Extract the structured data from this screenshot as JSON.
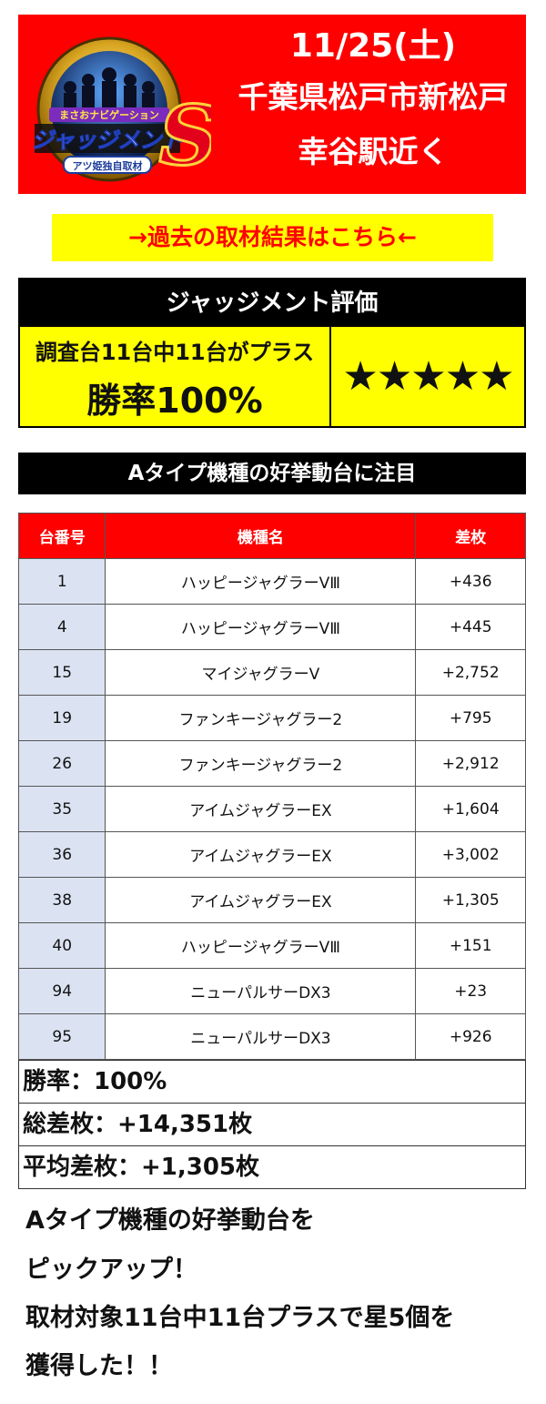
{
  "header": {
    "date": "11/25(土)",
    "location_line1": "千葉県松戸市新松戸",
    "location_line2": "幸谷駅近く",
    "logo": {
      "top_text": "まさおナビゲーション",
      "main_text": "ジャッジメント",
      "badge_text": "アツ姫独自取材",
      "letter": "S"
    }
  },
  "past_results_link": "→過去の取材結果はこちら←",
  "evaluation": {
    "title": "ジャッジメント評価",
    "condition": "調査台11台中11台がプラス",
    "win_rate": "勝率100%",
    "stars": "★★★★★",
    "star_count": 5
  },
  "section_title": "Aタイプ機種の好挙動台に注目",
  "table": {
    "headers": [
      "台番号",
      "機種名",
      "差枚"
    ],
    "rows": [
      {
        "num": "1",
        "name": "ハッピージャグラーVⅢ",
        "diff": "+436"
      },
      {
        "num": "4",
        "name": "ハッピージャグラーVⅢ",
        "diff": "+445"
      },
      {
        "num": "15",
        "name": "マイジャグラーV",
        "diff": "+2,752"
      },
      {
        "num": "19",
        "name": "ファンキージャグラー2",
        "diff": "+795"
      },
      {
        "num": "26",
        "name": "ファンキージャグラー2",
        "diff": "+2,912"
      },
      {
        "num": "35",
        "name": "アイムジャグラーEX",
        "diff": "+1,604"
      },
      {
        "num": "36",
        "name": "アイムジャグラーEX",
        "diff": "+3,002"
      },
      {
        "num": "38",
        "name": "アイムジャグラーEX",
        "diff": "+1,305"
      },
      {
        "num": "40",
        "name": "ハッピージャグラーVⅢ",
        "diff": "+151"
      },
      {
        "num": "94",
        "name": "ニューパルサーDX3",
        "diff": "+23"
      },
      {
        "num": "95",
        "name": "ニューパルサーDX3",
        "diff": "+926"
      }
    ]
  },
  "summary": {
    "win_rate": "勝率：100%",
    "total": "総差枚：+14,351枚",
    "average": "平均差枚：+1,305枚"
  },
  "footer": {
    "line1": "Aタイプ機種の好挙動台を",
    "line2": "ピックアップ！",
    "line3": "取材対象11台中11台プラスで星5個を",
    "line4": "獲得した！！"
  },
  "colors": {
    "banner_red": "#ff0000",
    "highlight_yellow": "#ffff00",
    "table_num_bg": "#dbe3f3"
  }
}
